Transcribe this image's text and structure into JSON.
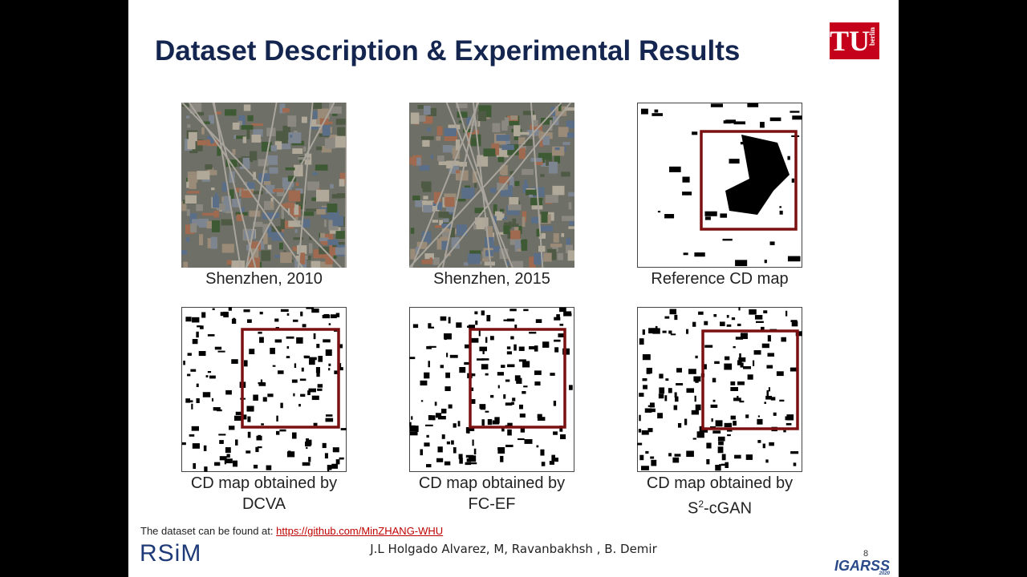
{
  "header": {
    "title": "Dataset Description & Experimental Results",
    "logo": {
      "main": "TU",
      "sub": "berlin"
    }
  },
  "panels": [
    {
      "caption": [
        "Shenzhen, 2010"
      ]
    },
    {
      "caption": [
        "Shenzhen, 2015"
      ]
    },
    {
      "caption": [
        "Reference CD map"
      ]
    },
    {
      "caption": [
        "CD map obtained by",
        "DCVA"
      ]
    },
    {
      "caption": [
        "CD map obtained by",
        "FC-EF"
      ]
    },
    {
      "caption": [
        "CD map obtained by"
      ],
      "caption_sup": {
        "base": "S",
        "sup": "2",
        "rest": "-cGAN"
      }
    }
  ],
  "footer": {
    "note": "The dataset can be found at:",
    "link": "https://github.com/MinZHANG-WHU",
    "authors": "J.L Holgado Alvarez, M, Ravanbakhsh , B. Demir",
    "page": "8",
    "left_logo": "RSiM",
    "right_logo": {
      "name": "IGARSS",
      "year": "2020"
    }
  }
}
